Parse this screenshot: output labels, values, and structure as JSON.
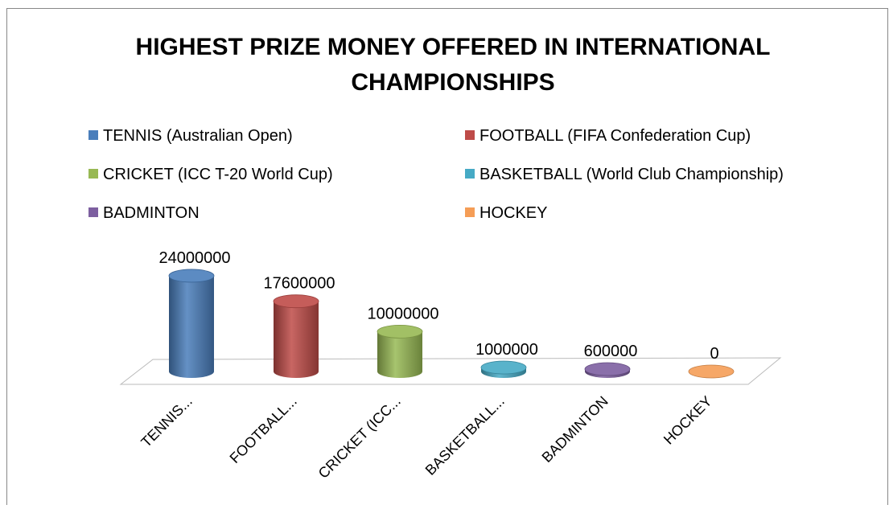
{
  "chart_data": {
    "type": "bar3d",
    "title": [
      "HIGHEST PRIZE MONEY OFFERED IN INTERNATIONAL",
      "CHAMPIONSHIPS"
    ],
    "legend": [
      "TENNIS (Australian Open)",
      "FOOTBALL (FIFA Confederation Cup)",
      "CRICKET (ICC T-20 World Cup)",
      "BASKETBALL (World Club Championship)",
      "BADMINTON",
      "HOCKEY"
    ],
    "categories": [
      "TENNIS...",
      "FOOTBALL...",
      "CRICKET (ICC...",
      "BASKETBALL...",
      "BADMINTON",
      "HOCKEY"
    ],
    "values": [
      24000000,
      17600000,
      10000000,
      1000000,
      600000,
      0
    ],
    "colors": [
      "#4a7ebb",
      "#be4b48",
      "#98b954",
      "#46aac5",
      "#7d5fa0",
      "#f59d56"
    ],
    "ylim": [
      0,
      25000000
    ]
  }
}
